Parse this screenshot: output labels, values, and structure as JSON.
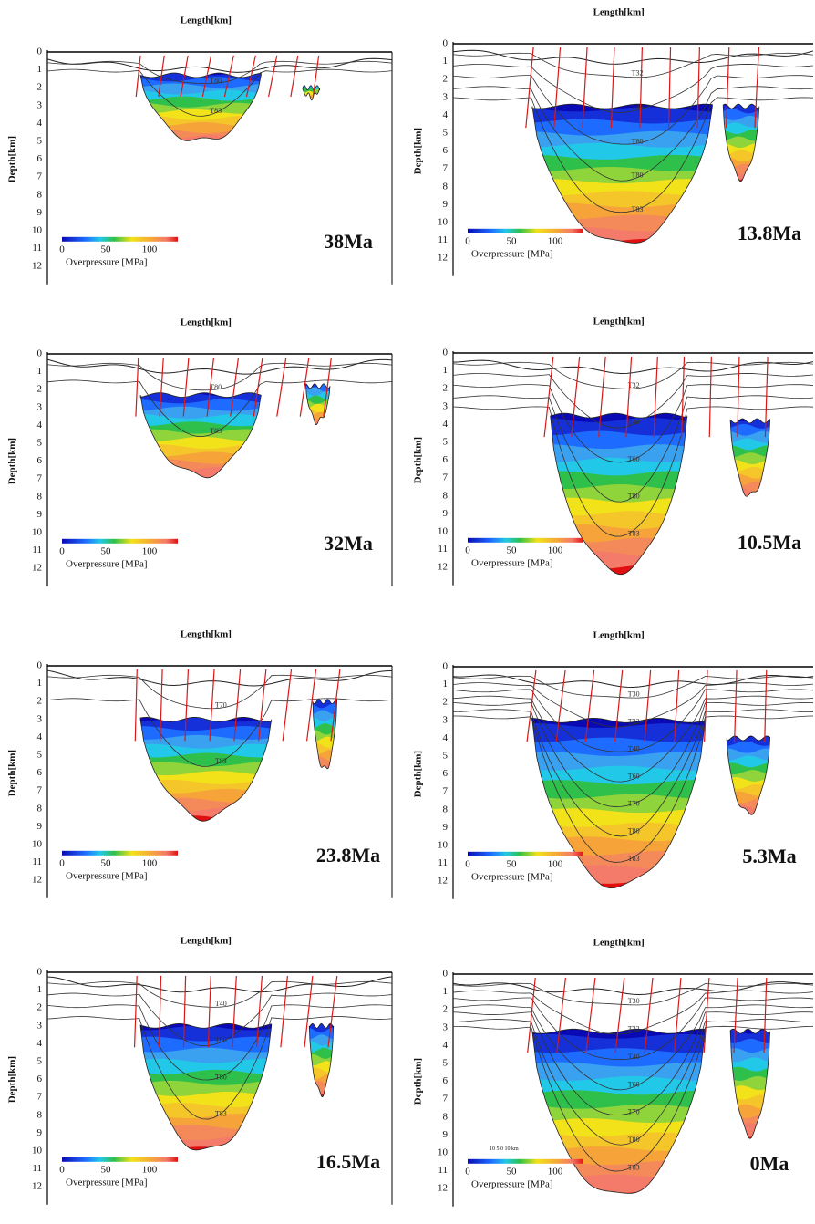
{
  "x_axis_title": "Length[km]",
  "y_axis_title": "Depth[km]",
  "depth_ticks": [
    "0",
    "1",
    "2",
    "3",
    "4",
    "5",
    "6",
    "7",
    "8",
    "9",
    "10",
    "11",
    "12"
  ],
  "colorbar": {
    "ticks": [
      "0",
      "50",
      "100"
    ],
    "label": "Overpressure [MPa]"
  },
  "scale_bar": "10  5  0     10 km",
  "panels": [
    {
      "age": "38Ma",
      "horizons": [
        "T80",
        "T83"
      ]
    },
    {
      "age": "13.8Ma",
      "horizons": [
        "T32",
        "T40",
        "T60",
        "T80",
        "T83"
      ]
    },
    {
      "age": "32Ma",
      "horizons": [
        "T80",
        "T83"
      ]
    },
    {
      "age": "10.5Ma",
      "horizons": [
        "T32",
        "T40",
        "T60",
        "T80",
        "T83"
      ]
    },
    {
      "age": "23.8Ma",
      "horizons": [
        "T70",
        "T83"
      ]
    },
    {
      "age": "5.3Ma",
      "horizons": [
        "T30",
        "T32",
        "T40",
        "T60",
        "T70",
        "T80",
        "T83"
      ]
    },
    {
      "age": "16.5Ma",
      "horizons": [
        "T40",
        "T60",
        "T80",
        "T83"
      ]
    },
    {
      "age": "0Ma",
      "horizons": [
        "T30",
        "T32",
        "T40",
        "T60",
        "T70",
        "T80",
        "T83"
      ]
    }
  ]
}
